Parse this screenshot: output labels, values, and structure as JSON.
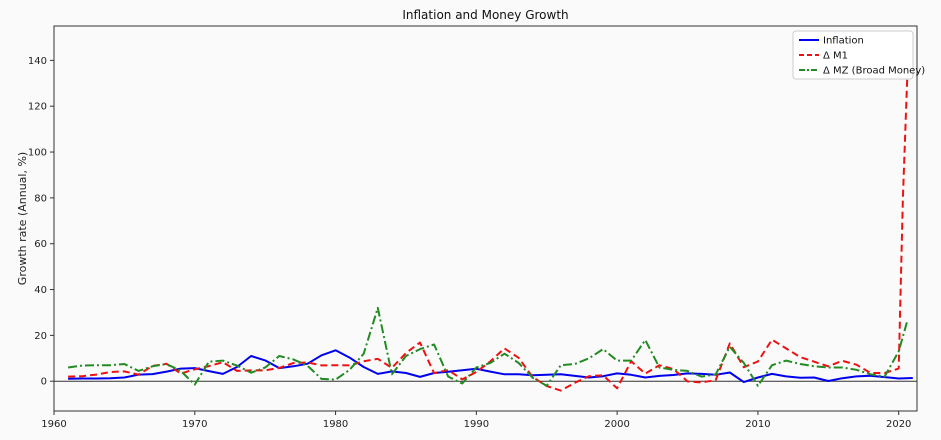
{
  "chart_data": {
    "type": "line",
    "title": "Inflation and Money Growth",
    "xlabel": "",
    "ylabel": "Growth rate (Annual, %)",
    "xlim": [
      1960,
      2021.3
    ],
    "ylim": [
      -13,
      155
    ],
    "xticks": [
      1960,
      1970,
      1980,
      1990,
      2000,
      2010,
      2020
    ],
    "yticks": [
      0,
      20,
      40,
      60,
      80,
      100,
      120,
      140
    ],
    "grid": false,
    "zero_line": true,
    "legend_position": "top-right",
    "series": [
      {
        "name": "Inflation",
        "color": "#0000ee",
        "style": "solid",
        "x": [
          1961,
          1962,
          1963,
          1964,
          1965,
          1966,
          1967,
          1968,
          1969,
          1970,
          1971,
          1972,
          1973,
          1974,
          1975,
          1976,
          1977,
          1978,
          1979,
          1980,
          1981,
          1982,
          1983,
          1984,
          1985,
          1986,
          1987,
          1988,
          1989,
          1990,
          1991,
          1992,
          1993,
          1994,
          1995,
          1996,
          1997,
          1998,
          1999,
          2000,
          2001,
          2002,
          2003,
          2004,
          2005,
          2006,
          2007,
          2008,
          2009,
          2010,
          2011,
          2012,
          2013,
          2014,
          2015,
          2016,
          2017,
          2018,
          2019,
          2020,
          2021
        ],
        "y": [
          1.1,
          1.2,
          1.2,
          1.3,
          1.6,
          2.9,
          3.1,
          4.2,
          5.5,
          5.7,
          4.4,
          3.2,
          6.2,
          11.0,
          9.1,
          5.7,
          6.5,
          7.6,
          11.3,
          13.5,
          10.3,
          6.2,
          3.2,
          4.3,
          3.6,
          1.9,
          3.6,
          4.1,
          4.8,
          5.4,
          4.2,
          3.0,
          3.0,
          2.6,
          2.8,
          3.0,
          2.3,
          1.6,
          2.2,
          3.4,
          2.8,
          1.6,
          2.3,
          2.7,
          3.4,
          3.2,
          2.8,
          3.8,
          -0.4,
          1.6,
          3.2,
          2.1,
          1.5,
          1.6,
          0.1,
          1.3,
          2.1,
          2.4,
          1.8,
          1.2,
          1.4
        ]
      },
      {
        "name": "Δ M1",
        "color": "#ee1111",
        "style": "dashed",
        "x": [
          1961,
          1962,
          1963,
          1964,
          1965,
          1966,
          1967,
          1968,
          1969,
          1970,
          1971,
          1972,
          1973,
          1974,
          1975,
          1976,
          1977,
          1978,
          1979,
          1980,
          1981,
          1982,
          1983,
          1984,
          1985,
          1986,
          1987,
          1988,
          1989,
          1990,
          1991,
          1992,
          1993,
          1994,
          1995,
          1996,
          1997,
          1998,
          1999,
          2000,
          2001,
          2002,
          2003,
          2004,
          2005,
          2006,
          2007,
          2008,
          2009,
          2010,
          2011,
          2012,
          2013,
          2014,
          2015,
          2016,
          2017,
          2018,
          2019,
          2020,
          2020.3,
          2020.7
        ],
        "y": [
          2.0,
          2.2,
          2.9,
          4.0,
          4.3,
          2.9,
          6.7,
          7.6,
          3.3,
          5.2,
          6.6,
          8.3,
          4.5,
          4.7,
          4.7,
          5.8,
          7.9,
          8.2,
          6.9,
          7.0,
          6.9,
          8.7,
          9.8,
          5.8,
          12.3,
          16.9,
          3.5,
          4.9,
          0.8,
          4.0,
          8.7,
          14.3,
          10.2,
          1.8,
          -2.1,
          -4.1,
          -0.7,
          2.2,
          2.6,
          -3.1,
          8.7,
          3.3,
          7.0,
          5.3,
          -0.1,
          -0.5,
          0.5,
          16.5,
          6.1,
          8.6,
          18.1,
          14.3,
          10.5,
          8.5,
          6.5,
          8.9,
          7.2,
          3.6,
          3.6,
          5.5,
          80.0,
          149.0
        ]
      },
      {
        "name": "Δ MZ (Broad Money)",
        "color": "#228b22",
        "style": "dashdot",
        "x": [
          1961,
          1962,
          1963,
          1964,
          1965,
          1966,
          1967,
          1968,
          1969,
          1970,
          1971,
          1972,
          1973,
          1974,
          1975,
          1976,
          1977,
          1978,
          1979,
          1980,
          1981,
          1982,
          1983,
          1984,
          1985,
          1986,
          1987,
          1988,
          1989,
          1990,
          1991,
          1992,
          1993,
          1994,
          1995,
          1996,
          1997,
          1998,
          1999,
          2000,
          2001,
          2002,
          2003,
          2004,
          2005,
          2006,
          2007,
          2008,
          2009,
          2010,
          2011,
          2012,
          2013,
          2014,
          2015,
          2016,
          2017,
          2018,
          2019,
          2020,
          2020.6
        ],
        "y": [
          6.0,
          6.8,
          7.0,
          7.0,
          7.5,
          4.5,
          6.5,
          7.5,
          4.5,
          -1.5,
          8.5,
          9.0,
          6.8,
          3.7,
          6.0,
          11.0,
          9.5,
          6.8,
          1.0,
          0.7,
          5.0,
          12.0,
          32.0,
          3.0,
          11.0,
          14.0,
          16.0,
          2.0,
          -1.0,
          6.0,
          8.0,
          12.0,
          8.0,
          1.5,
          -2.0,
          7.0,
          7.5,
          10.0,
          14.0,
          9.0,
          9.0,
          18.0,
          6.0,
          5.0,
          4.5,
          2.0,
          3.0,
          15.0,
          8.0,
          -2.0,
          7.0,
          9.0,
          7.5,
          6.5,
          6.0,
          6.0,
          5.0,
          3.0,
          2.0,
          13.0,
          26.0
        ]
      }
    ]
  }
}
